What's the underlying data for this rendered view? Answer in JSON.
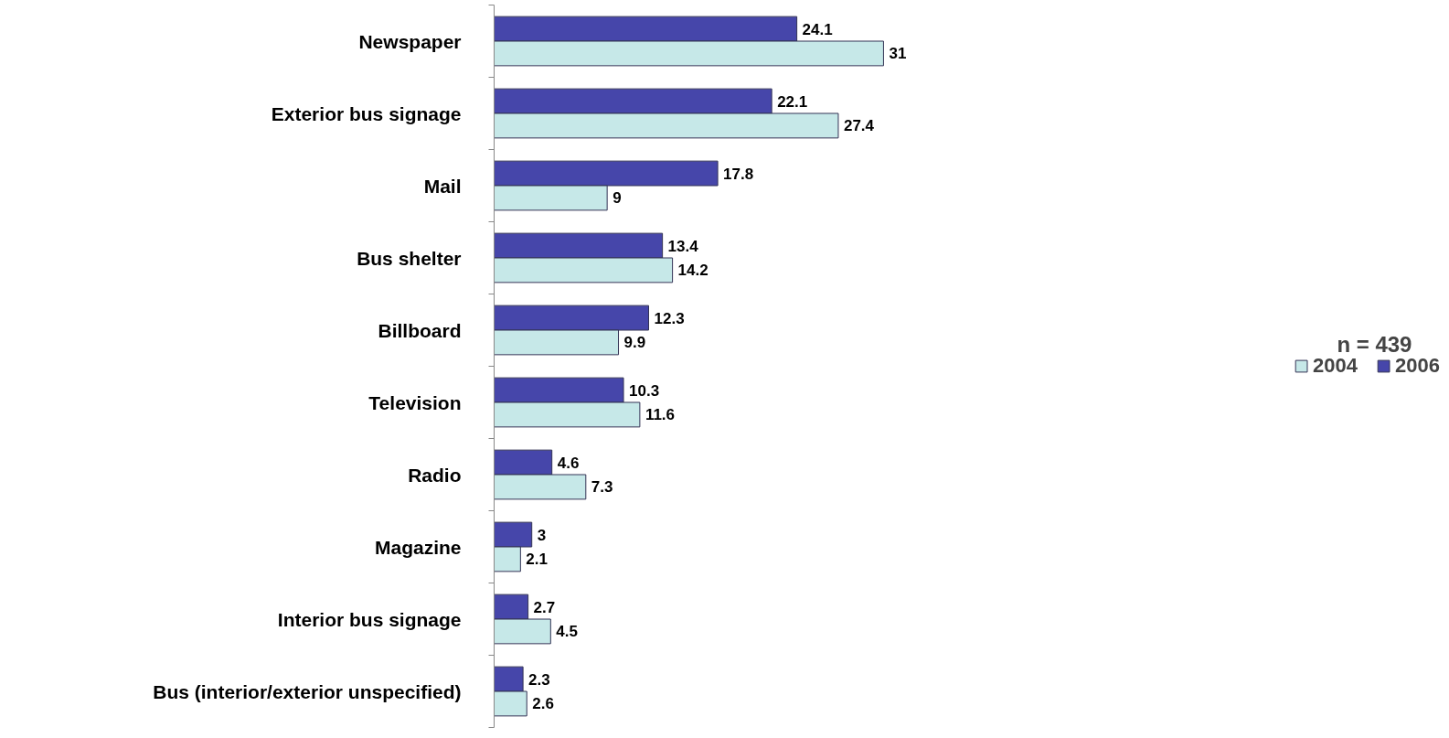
{
  "chart_data": {
    "type": "bar",
    "orientation": "horizontal",
    "categories": [
      "Newspaper",
      "Exterior bus signage",
      "Mail",
      "Bus shelter",
      "Billboard",
      "Television",
      "Radio",
      "Magazine",
      "Interior bus signage",
      "Bus (interior/exterior unspecified)"
    ],
    "series": [
      {
        "name": "2006",
        "color": "#4646aa",
        "values": [
          24.1,
          22.1,
          17.8,
          13.4,
          12.3,
          10.3,
          4.6,
          3,
          2.7,
          2.3
        ]
      },
      {
        "name": "2004",
        "color": "#c6e8e8",
        "values": [
          31,
          27.4,
          9,
          14.2,
          9.9,
          11.6,
          7.3,
          2.1,
          4.5,
          2.6
        ]
      }
    ],
    "data_labels": true,
    "legend": "right",
    "grid": false,
    "annotations": [
      "n = 439"
    ]
  }
}
